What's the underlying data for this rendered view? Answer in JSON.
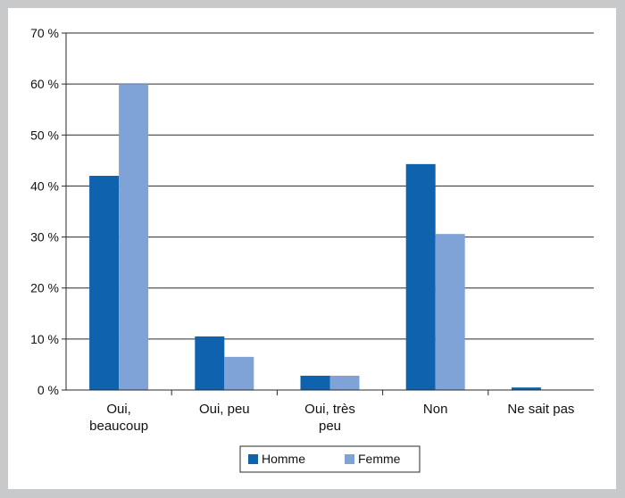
{
  "chart_data": {
    "type": "bar",
    "categories": [
      [
        "Oui,",
        "beaucoup"
      ],
      [
        "Oui, peu"
      ],
      [
        "Oui, très",
        "peu"
      ],
      [
        "Non"
      ],
      [
        "Ne sait pas"
      ]
    ],
    "series": [
      {
        "name": "Homme",
        "color": "#0f62ad",
        "values": [
          42,
          10.5,
          2.8,
          44.3,
          0.5
        ]
      },
      {
        "name": "Femme",
        "color": "#7fa3d6",
        "values": [
          60,
          6.5,
          2.8,
          30.6,
          0
        ]
      }
    ],
    "yticks": [
      0,
      10,
      20,
      30,
      40,
      50,
      60,
      70
    ],
    "ytick_suffix": " %",
    "ylim": [
      0,
      70
    ],
    "grid": true,
    "legend": "bottom-center"
  }
}
